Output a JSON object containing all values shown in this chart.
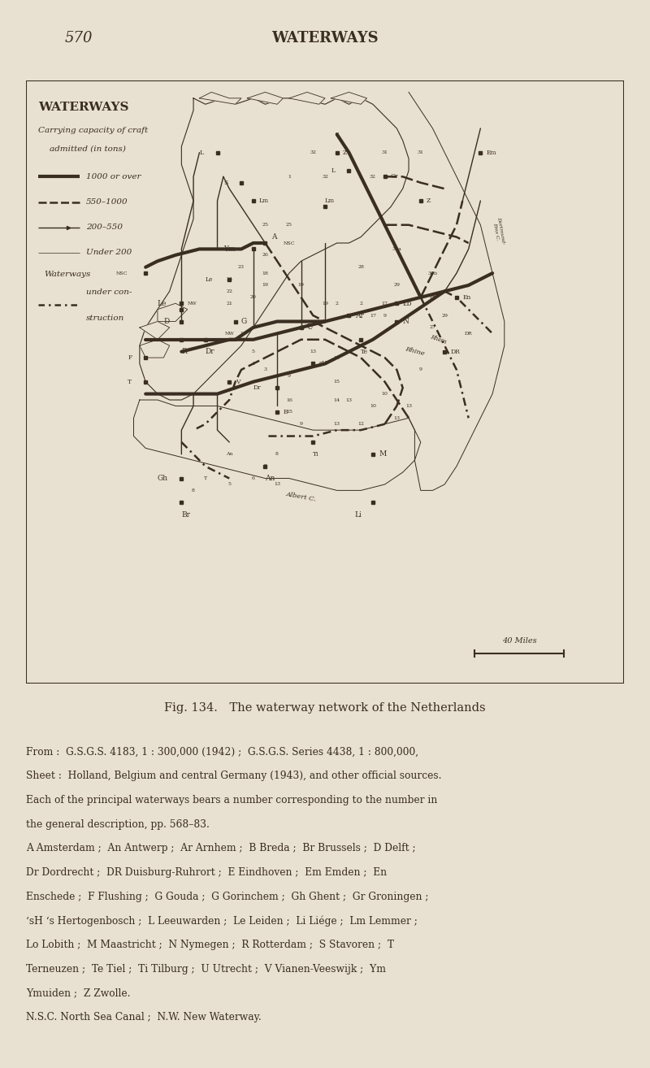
{
  "background_color": "#e8e0d0",
  "page_background": "#e8e0d0",
  "page_number": "570",
  "page_header": "WATERWAYS",
  "map_title": "WATERWAYS",
  "map_subtitle1": "Carrying capacity of craft",
  "map_subtitle2": "admitted (in tons)",
  "legend": {
    "line1_label": "1000 or over",
    "line2_label": "550–1000",
    "line3_label": "200–550",
    "line4_label": "Under 200",
    "line5_label": "Waterways",
    "line6_label": "under con-",
    "line7_label": "struction"
  },
  "fig_caption": "Fig. 134. The waterway network of the Netherlands",
  "body_text": [
    "From :  G.S.G.S. 4183, 1 : 300,000 (1942) ;  G.S.G.S. Series 4438, 1 : 800,000,",
    "Sheet :  Holland, Belgium and central Germany (1943), and other official sources.",
    "Each of the principal waterways bears a number corresponding to the number in",
    "the general description, pp. 568–83.",
    "A Amsterdam ;  An Antwerp ;  Ar Arnhem ;  B Breda ;  Br Brussels ;  D Delft ;",
    "Dr Dordrecht ;  DR Duisburg-Ruhrort ;  E Eindhoven ;  Em Emden ;  En",
    "Enschede ;  F Flushing ;  G Gouda ;  G Gorinchem ;  Gh Ghent ;  Gr Groningen ;",
    "‘sH ‘s Hertogenbosch ;  L Leeuwarden ;  Le Leiden ;  Li Liége ;  Lm Lemmer ;",
    "Lo Lobith ;  M Maastricht ;  N Nymegen ;  R Rotterdam ;  S Stavoren ;  T",
    "Terneuzen ;  Te Tiel ;  Ti Tilburg ;  U Utrecht ;  V Vianen-Veeswijk ;  Ym",
    "Ymuiden ;  Z Zwolle.",
    "N.S.C. North Sea Canal ;  N.W. New Waterway."
  ],
  "map_border_color": "#3a2e22",
  "text_color": "#3a2e22",
  "map_bg": "#e8e0d0"
}
